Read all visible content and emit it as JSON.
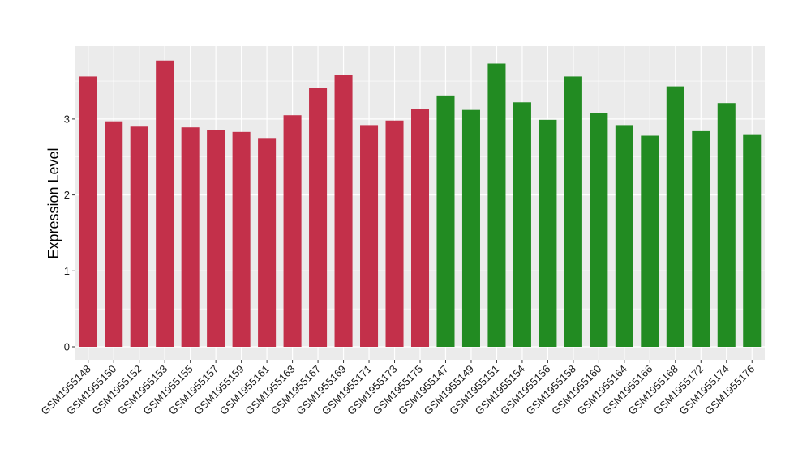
{
  "chart_data": {
    "type": "bar",
    "title": "",
    "xlabel": "",
    "ylabel": "Expression Level",
    "ylim": [
      0,
      3.9
    ],
    "yticks": [
      0,
      1,
      2,
      3
    ],
    "grid": true,
    "legend": "none",
    "categories": [
      "GSM1955148",
      "GSM1955150",
      "GSM1955152",
      "GSM1955153",
      "GSM1955155",
      "GSM1955157",
      "GSM1955159",
      "GSM1955161",
      "GSM1955163",
      "GSM1955167",
      "GSM1955169",
      "GSM1955171",
      "GSM1955173",
      "GSM1955175",
      "GSM1955147",
      "GSM1955149",
      "GSM1955151",
      "GSM1955154",
      "GSM1955156",
      "GSM1955158",
      "GSM1955160",
      "GSM1955164",
      "GSM1955166",
      "GSM1955168",
      "GSM1955172",
      "GSM1955174",
      "GSM1955176"
    ],
    "values": [
      3.56,
      2.97,
      2.9,
      3.77,
      2.89,
      2.86,
      2.83,
      2.75,
      3.05,
      3.41,
      3.58,
      2.92,
      2.98,
      3.13,
      3.31,
      3.12,
      3.73,
      3.22,
      2.99,
      3.56,
      3.08,
      2.92,
      2.78,
      3.43,
      2.84,
      3.21,
      2.8
    ],
    "groups": [
      "a",
      "a",
      "a",
      "a",
      "a",
      "a",
      "a",
      "a",
      "a",
      "a",
      "a",
      "a",
      "a",
      "a",
      "b",
      "b",
      "b",
      "b",
      "b",
      "b",
      "b",
      "b",
      "b",
      "b",
      "b",
      "b",
      "b"
    ],
    "colors": {
      "a": "#C3304A",
      "b": "#228B22",
      "panel": "#EBEBEB",
      "grid": "#FFFFFF"
    }
  }
}
